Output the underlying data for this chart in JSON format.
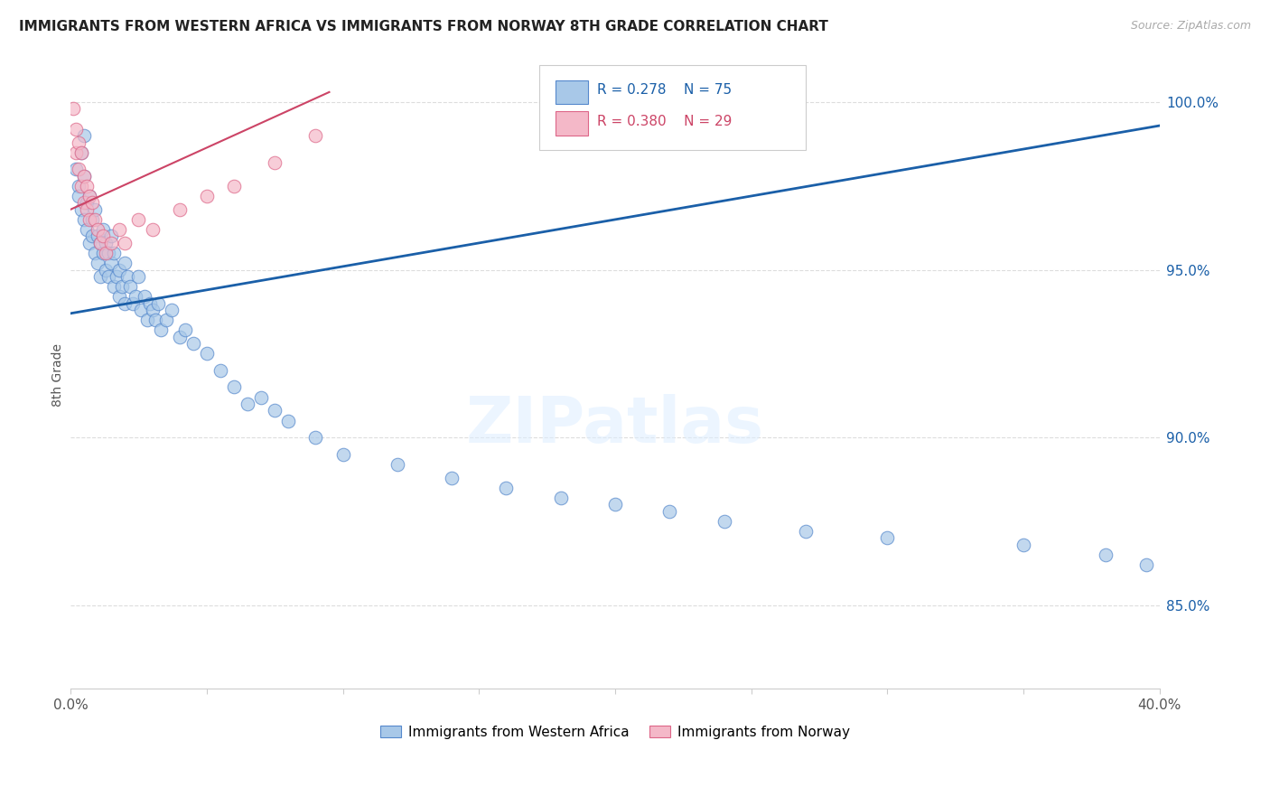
{
  "title": "IMMIGRANTS FROM WESTERN AFRICA VS IMMIGRANTS FROM NORWAY 8TH GRADE CORRELATION CHART",
  "source": "Source: ZipAtlas.com",
  "ylabel": "8th Grade",
  "ytick_labels": [
    "100.0%",
    "95.0%",
    "90.0%",
    "85.0%"
  ],
  "ytick_values": [
    1.0,
    0.95,
    0.9,
    0.85
  ],
  "xlim": [
    0.0,
    0.4
  ],
  "ylim": [
    0.825,
    1.012
  ],
  "legend_label_blue": "Immigrants from Western Africa",
  "legend_label_pink": "Immigrants from Norway",
  "blue_color": "#a8c8e8",
  "pink_color": "#f4b8c8",
  "blue_edge_color": "#5588cc",
  "pink_edge_color": "#dd6688",
  "blue_line_color": "#1a5fa8",
  "pink_line_color": "#cc4466",
  "blue_line_x0": 0.0,
  "blue_line_x1": 0.4,
  "blue_line_y0": 0.937,
  "blue_line_y1": 0.993,
  "pink_line_x0": 0.0,
  "pink_line_x1": 0.095,
  "pink_line_y0": 0.968,
  "pink_line_y1": 1.003,
  "watermark": "ZIPatlas",
  "background_color": "#ffffff",
  "grid_color": "#dddddd",
  "legend_r_blue": "R = 0.278",
  "legend_n_blue": "N = 75",
  "legend_r_pink": "R = 0.380",
  "legend_n_pink": "N = 29",
  "blue_x": [
    0.002,
    0.003,
    0.003,
    0.004,
    0.004,
    0.005,
    0.005,
    0.005,
    0.006,
    0.006,
    0.007,
    0.007,
    0.008,
    0.008,
    0.009,
    0.009,
    0.01,
    0.01,
    0.011,
    0.011,
    0.012,
    0.012,
    0.013,
    0.013,
    0.014,
    0.014,
    0.015,
    0.015,
    0.016,
    0.016,
    0.017,
    0.018,
    0.018,
    0.019,
    0.02,
    0.02,
    0.021,
    0.022,
    0.023,
    0.024,
    0.025,
    0.026,
    0.027,
    0.028,
    0.029,
    0.03,
    0.031,
    0.032,
    0.033,
    0.035,
    0.037,
    0.04,
    0.042,
    0.045,
    0.05,
    0.055,
    0.06,
    0.065,
    0.07,
    0.075,
    0.08,
    0.09,
    0.1,
    0.12,
    0.14,
    0.16,
    0.18,
    0.2,
    0.22,
    0.24,
    0.27,
    0.3,
    0.35,
    0.38,
    0.395
  ],
  "blue_y": [
    0.98,
    0.975,
    0.972,
    0.968,
    0.985,
    0.965,
    0.978,
    0.99,
    0.962,
    0.97,
    0.958,
    0.972,
    0.96,
    0.965,
    0.955,
    0.968,
    0.952,
    0.96,
    0.948,
    0.958,
    0.955,
    0.962,
    0.95,
    0.958,
    0.948,
    0.955,
    0.952,
    0.96,
    0.945,
    0.955,
    0.948,
    0.942,
    0.95,
    0.945,
    0.952,
    0.94,
    0.948,
    0.945,
    0.94,
    0.942,
    0.948,
    0.938,
    0.942,
    0.935,
    0.94,
    0.938,
    0.935,
    0.94,
    0.932,
    0.935,
    0.938,
    0.93,
    0.932,
    0.928,
    0.925,
    0.92,
    0.915,
    0.91,
    0.912,
    0.908,
    0.905,
    0.9,
    0.895,
    0.892,
    0.888,
    0.885,
    0.882,
    0.88,
    0.878,
    0.875,
    0.872,
    0.87,
    0.868,
    0.865,
    0.862
  ],
  "pink_x": [
    0.001,
    0.002,
    0.002,
    0.003,
    0.003,
    0.004,
    0.004,
    0.005,
    0.005,
    0.006,
    0.006,
    0.007,
    0.007,
    0.008,
    0.009,
    0.01,
    0.011,
    0.012,
    0.013,
    0.015,
    0.018,
    0.02,
    0.025,
    0.03,
    0.04,
    0.05,
    0.06,
    0.075,
    0.09
  ],
  "pink_y": [
    0.998,
    0.992,
    0.985,
    0.988,
    0.98,
    0.985,
    0.975,
    0.978,
    0.97,
    0.975,
    0.968,
    0.972,
    0.965,
    0.97,
    0.965,
    0.962,
    0.958,
    0.96,
    0.955,
    0.958,
    0.962,
    0.958,
    0.965,
    0.962,
    0.968,
    0.972,
    0.975,
    0.982,
    0.99
  ]
}
